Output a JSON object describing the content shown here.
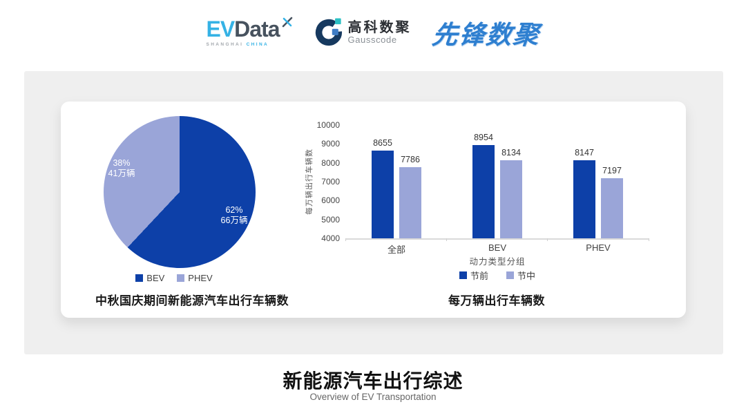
{
  "header": {
    "evdata": {
      "name_ev": "EV",
      "name_rest": "Data",
      "sub1": "SHANGHAI",
      "sub2": "CHINA"
    },
    "gausscode": {
      "cn": "高科数聚",
      "en": "Gausscode"
    },
    "pioneer": {
      "text": "先锋数聚"
    }
  },
  "colors": {
    "series_dark": "#0d40a8",
    "series_light": "#9aa5d8",
    "panel_bg": "#efefef",
    "evdata_cyan": "#35b2e5",
    "gauss_navy": "#16395f",
    "gauss_teal": "#2bc0c4",
    "gauss_blue": "#3e7cc4",
    "pioneer_blue": "#2e7fd0"
  },
  "chart_data": [
    {
      "type": "pie",
      "title": "中秋国庆期间新能源汽车出行车辆数",
      "start_angle": "top",
      "direction": "clockwise",
      "legend_position": "bottom",
      "slices": [
        {
          "label": "BEV",
          "percent": 62,
          "percent_label": "62%",
          "value_label": "66万辆",
          "color": "#0d40a8"
        },
        {
          "label": "PHEV",
          "percent": 38,
          "percent_label": "38%",
          "value_label": "41万辆",
          "color": "#9aa5d8"
        }
      ]
    },
    {
      "type": "bar",
      "title": "每万辆出行车辆数",
      "ylabel": "每万辆出行车辆数",
      "xlabel": "动力类型分组",
      "categories": [
        "全部",
        "BEV",
        "PHEV"
      ],
      "series": [
        {
          "name": "节前",
          "values": [
            8655,
            8954,
            8147
          ],
          "color": "#0d40a8"
        },
        {
          "name": "节中",
          "values": [
            7786,
            8134,
            7197
          ],
          "color": "#9aa5d8"
        }
      ],
      "ylim": [
        4000,
        10000
      ],
      "yticks": [
        4000,
        5000,
        6000,
        7000,
        8000,
        9000,
        10000
      ],
      "grid": false,
      "legend_position": "bottom"
    }
  ],
  "footer": {
    "title": "新能源汽车出行综述",
    "subtitle": "Overview of EV Transportation"
  }
}
